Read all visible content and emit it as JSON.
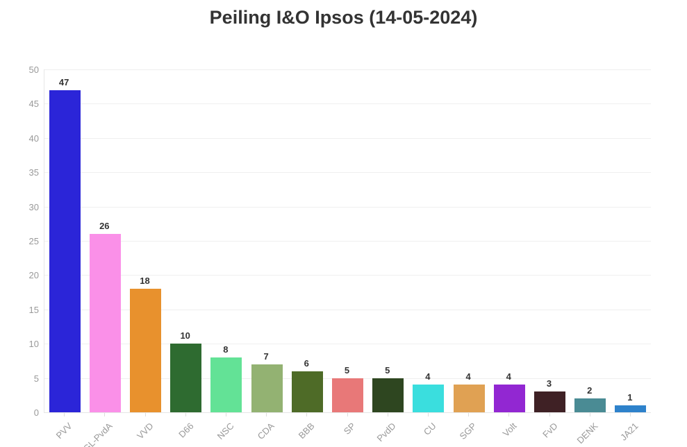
{
  "chart_data": {
    "type": "bar",
    "title": "Peiling I&O Ipsos (14-05-2024)",
    "categories": [
      "PVV",
      "GL-PvdA",
      "VVD",
      "D66",
      "NSC",
      "CDA",
      "BBB",
      "SP",
      "PvdD",
      "CU",
      "SGP",
      "Volt",
      "FvD",
      "DENK",
      "JA21"
    ],
    "values": [
      47,
      26,
      18,
      10,
      8,
      7,
      6,
      5,
      5,
      4,
      4,
      4,
      3,
      2,
      1
    ],
    "colors": [
      "#2b25d8",
      "#fa90e8",
      "#e8912d",
      "#2e6b30",
      "#63e296",
      "#93b272",
      "#4e6b27",
      "#e87878",
      "#2e4620",
      "#3adede",
      "#e0a153",
      "#9227d2",
      "#3f2125",
      "#4a8b94",
      "#2e82cb"
    ],
    "xlabel": "",
    "ylabel": "",
    "ylim": [
      0,
      50
    ],
    "ytick_step": 5,
    "grid": true,
    "legend": "none",
    "colors_meta": {
      "title_color": "#333333",
      "value_label_color": "#333333",
      "tick_label_color": "#999999",
      "grid_color": "#efefef",
      "axis_color": "#e6e6e6",
      "background": "#ffffff"
    }
  }
}
